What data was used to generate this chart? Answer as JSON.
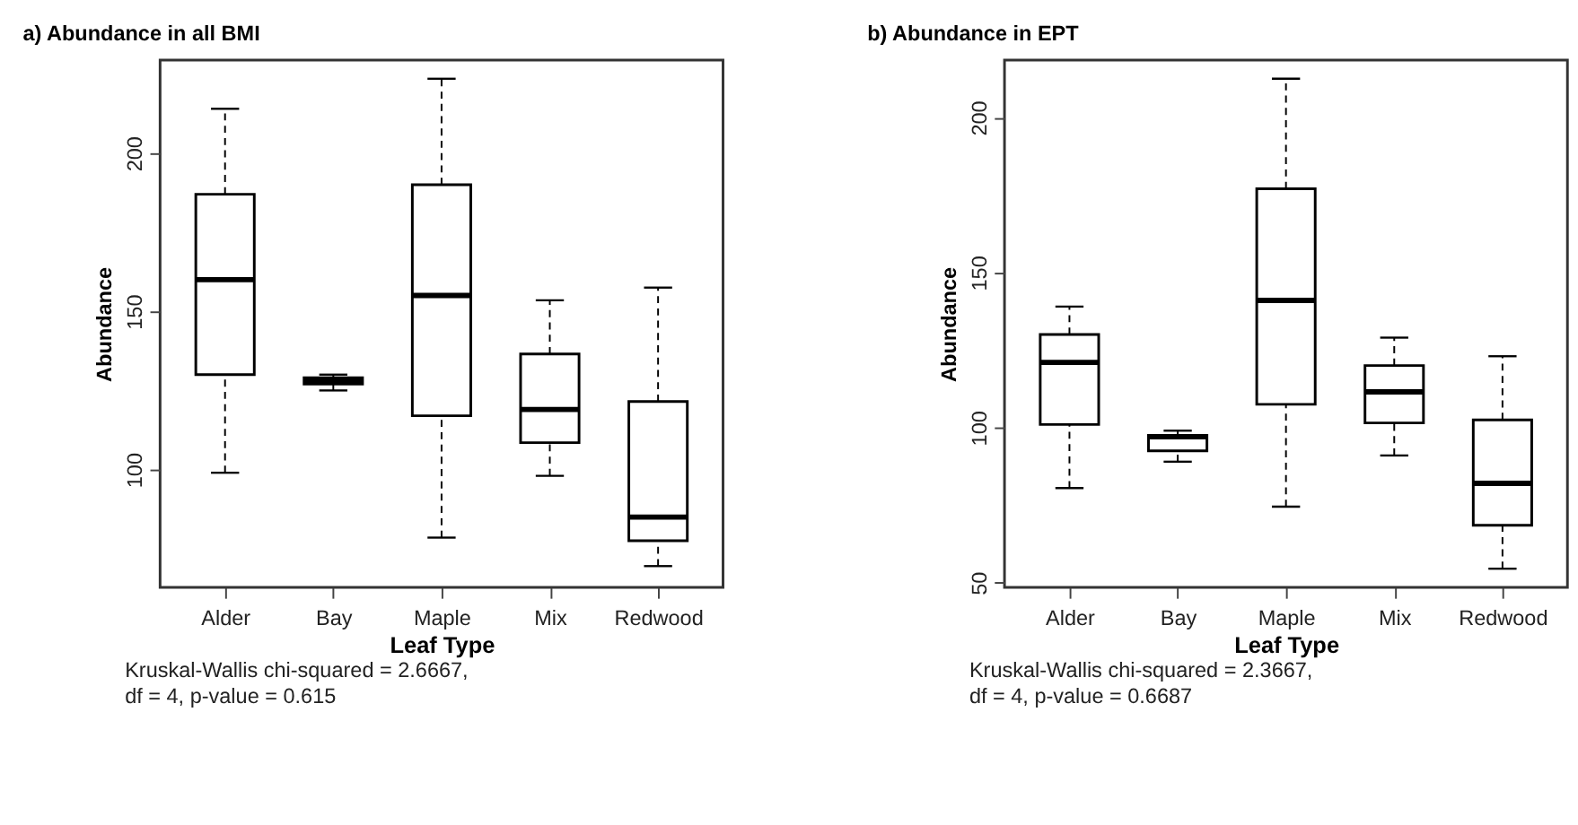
{
  "chart_data": [
    {
      "type": "box",
      "title": "a) Abundance in all BMI",
      "xlabel": "Leaf Type",
      "ylabel": "Abundance",
      "categories": [
        "Alder",
        "Bay",
        "Maple",
        "Mix",
        "Redwood"
      ],
      "ylim": [
        62.8,
        229.4
      ],
      "yticks": [
        100,
        150,
        200
      ],
      "boxes": [
        {
          "low": 99,
          "q1": 130,
          "median": 160,
          "q3": 187,
          "high": 214
        },
        {
          "low": 125,
          "q1": 127,
          "median": 128,
          "q3": 129,
          "high": 130
        },
        {
          "low": 78.5,
          "q1": 117,
          "median": 155,
          "q3": 190,
          "high": 223.5
        },
        {
          "low": 98,
          "q1": 108.5,
          "median": 119,
          "q3": 136.5,
          "high": 153.5
        },
        {
          "low": 69.5,
          "q1": 77.5,
          "median": 85,
          "q3": 121.5,
          "high": 157.5
        }
      ],
      "annotations": [
        "Kruskal-Wallis chi-squared = 2.6667,",
        "df = 4, p-value = 0.615"
      ]
    },
    {
      "type": "box",
      "title": "b) Abundance in EPT",
      "xlabel": "Leaf Type",
      "ylabel": "Abundance",
      "categories": [
        "Alder",
        "Bay",
        "Maple",
        "Mix",
        "Redwood"
      ],
      "ylim": [
        48.5,
        218.5
      ],
      "yticks": [
        50,
        100,
        150,
        200
      ],
      "boxes": [
        {
          "low": 80.5,
          "q1": 101,
          "median": 121,
          "q3": 130,
          "high": 139
        },
        {
          "low": 89,
          "q1": 92.5,
          "median": 97,
          "q3": 97.5,
          "high": 99
        },
        {
          "low": 74.5,
          "q1": 107.5,
          "median": 141,
          "q3": 177,
          "high": 212.5
        },
        {
          "low": 91,
          "q1": 101.5,
          "median": 111.5,
          "q3": 120,
          "high": 129
        },
        {
          "low": 54.5,
          "q1": 68.5,
          "median": 82,
          "q3": 102.5,
          "high": 123
        }
      ],
      "annotations": [
        "Kruskal-Wallis chi-squared = 2.3667,",
        "df = 4, p-value = 0.6687"
      ]
    }
  ]
}
